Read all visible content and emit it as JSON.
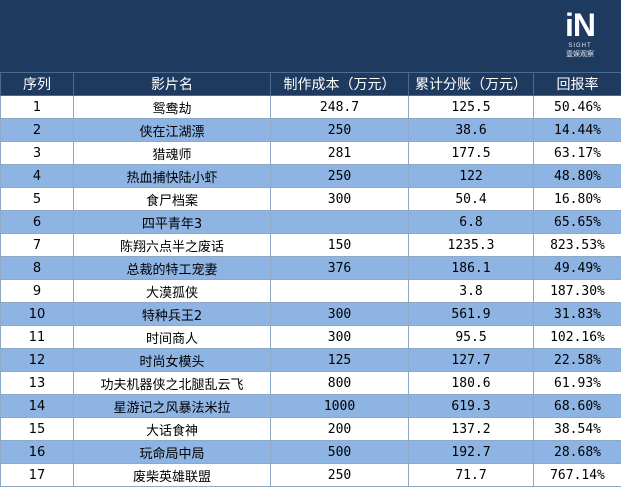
{
  "logo": {
    "mark": "iN",
    "sub": "SIGHT",
    "cn": "壹娱观察"
  },
  "table": {
    "headers": [
      "序列",
      "影片名",
      "制作成本（万元）",
      "累计分账（万元）",
      "回报率"
    ],
    "rows": [
      [
        "1",
        "鸳鸯劫",
        "248.7",
        "125.5",
        "50.46%"
      ],
      [
        "2",
        "侠在江湖漂",
        "250",
        "38.6",
        "14.44%"
      ],
      [
        "3",
        "猎魂师",
        "281",
        "177.5",
        "63.17%"
      ],
      [
        "4",
        "热血捕快陆小虾",
        "250",
        "122",
        "48.80%"
      ],
      [
        "5",
        "食尸档案",
        "300",
        "50.4",
        "16.80%"
      ],
      [
        "6",
        "四平青年3",
        "",
        "6.8",
        "65.65%"
      ],
      [
        "7",
        "陈翔六点半之废话",
        "150",
        "1235.3",
        "823.53%"
      ],
      [
        "8",
        "总裁的特工宠妻",
        "376",
        "186.1",
        "49.49%"
      ],
      [
        "9",
        "大漠孤侠",
        "",
        "3.8",
        "187.30%"
      ],
      [
        "10",
        "特种兵王2",
        "300",
        "561.9",
        "31.83%"
      ],
      [
        "11",
        "时间商人",
        "300",
        "95.5",
        "102.16%"
      ],
      [
        "12",
        "时尚女模头",
        "125",
        "127.7",
        "22.58%"
      ],
      [
        "13",
        "功夫机器侠之北腿乱云飞",
        "800",
        "180.6",
        "61.93%"
      ],
      [
        "14",
        "星游记之风暴法米拉",
        "1000",
        "619.3",
        "68.60%"
      ],
      [
        "15",
        "大话食神",
        "200",
        "137.2",
        "38.54%"
      ],
      [
        "16",
        "玩命局中局",
        "500",
        "192.7",
        "28.68%"
      ],
      [
        "17",
        "废柴英雄联盟",
        "250",
        "71.7",
        "767.14%"
      ]
    ]
  }
}
